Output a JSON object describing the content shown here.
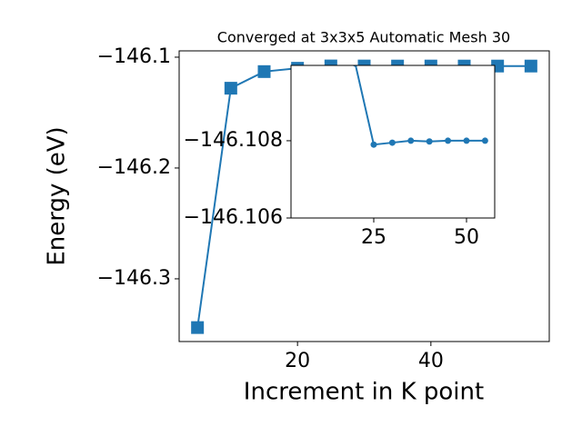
{
  "chart_data": [
    {
      "type": "line",
      "title": "Converged at 3x3x5 Automatic Mesh 30",
      "x_label": "Increment in K point",
      "y_label": "Energy (eV)",
      "x": [
        5,
        10,
        15,
        20,
        25,
        30,
        35,
        40,
        45,
        50,
        55
      ],
      "values": [
        -146.344,
        -146.128,
        -146.113,
        -146.11,
        -146.1079,
        -146.10795,
        -146.108,
        -146.10798,
        -146.108,
        -146.108,
        -146.108
      ],
      "color": "#1f77b4",
      "marker": "square",
      "xlim": [
        2.25,
        57.75
      ],
      "xticks": [
        20,
        40
      ],
      "ylim": [
        -146.3566,
        -146.0943
      ],
      "yticks": [
        {
          "value": -146.3,
          "label": "−146.3"
        },
        {
          "value": -146.2,
          "label": "−146.2"
        },
        {
          "value": -146.1,
          "label": "−146.1"
        }
      ]
    },
    {
      "type": "line",
      "x": [
        20,
        25,
        30,
        35,
        40,
        45,
        50,
        55
      ],
      "values": [
        -146.11,
        -146.1079,
        -146.10795,
        -146.108,
        -146.10798,
        -146.108,
        -146.108,
        -146.108
      ],
      "color": "#1f77b4",
      "marker": "circle",
      "xlim": [
        2.7,
        57.6
      ],
      "xticks": [
        25,
        50
      ],
      "ylim": [
        -146.106,
        -146.10995
      ],
      "yticks": [
        {
          "value": -146.108,
          "label": "−146.108"
        },
        {
          "value": -146.106,
          "label": "−146.106"
        }
      ]
    }
  ]
}
